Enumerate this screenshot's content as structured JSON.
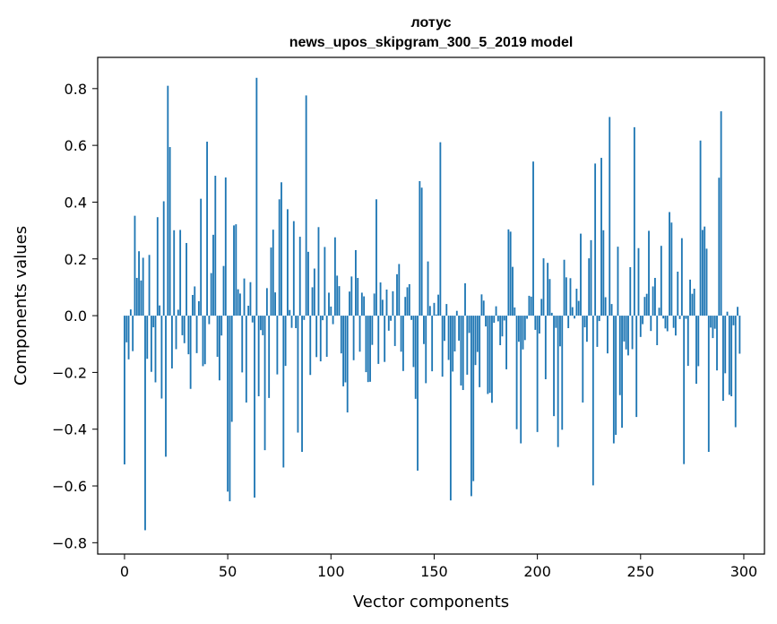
{
  "chart_data": {
    "type": "bar",
    "title": "лотус",
    "subtitle": "news_upos_skipgram_300_5_2019 model",
    "xlabel": "Vector components",
    "ylabel": "Components values",
    "xlim": [
      -13,
      310
    ],
    "ylim": [
      -0.84,
      0.91
    ],
    "xticks": [
      0,
      50,
      100,
      150,
      200,
      250,
      300
    ],
    "yticks": [
      -0.8,
      -0.6,
      -0.4,
      -0.2,
      0.0,
      0.2,
      0.4,
      0.6,
      0.8
    ],
    "ytick_labels": [
      "−0.8",
      "−0.6",
      "−0.4",
      "−0.2",
      "0.0",
      "0.2",
      "0.4",
      "0.6",
      "0.8"
    ],
    "grid": false,
    "bar_color": "#1f77b4",
    "values": [
      -0.524,
      -0.094,
      -0.154,
      0.022,
      -0.125,
      0.352,
      0.133,
      0.227,
      0.124,
      0.204,
      -0.756,
      -0.152,
      0.214,
      -0.198,
      -0.041,
      -0.235,
      0.347,
      0.036,
      -0.292,
      0.403,
      -0.497,
      0.81,
      0.594,
      -0.186,
      0.301,
      -0.118,
      0.021,
      0.302,
      -0.069,
      -0.097,
      0.256,
      -0.136,
      -0.258,
      0.073,
      0.103,
      -0.132,
      0.051,
      0.412,
      -0.178,
      -0.171,
      0.613,
      -0.03,
      0.15,
      0.285,
      0.493,
      -0.145,
      -0.228,
      -0.07,
      0.175,
      0.487,
      -0.62,
      -0.654,
      -0.374,
      0.318,
      0.322,
      0.093,
      0.078,
      -0.2,
      0.131,
      -0.306,
      0.035,
      0.118,
      -0.024,
      -0.641,
      0.838,
      -0.284,
      -0.051,
      -0.069,
      -0.474,
      0.097,
      -0.29,
      0.24,
      0.303,
      0.082,
      -0.207,
      0.41,
      0.47,
      -0.535,
      -0.177,
      0.375,
      0.02,
      -0.043,
      0.333,
      -0.044,
      -0.412,
      0.278,
      -0.48,
      -0.015,
      0.776,
      0.225,
      -0.209,
      0.1,
      0.166,
      -0.146,
      0.312,
      -0.161,
      -0.016,
      0.242,
      -0.145,
      0.081,
      0.032,
      -0.03,
      0.276,
      0.141,
      0.104,
      -0.133,
      -0.249,
      -0.235,
      -0.341,
      0.085,
      0.138,
      -0.157,
      0.231,
      0.133,
      -0.127,
      0.081,
      0.068,
      -0.199,
      -0.234,
      -0.233,
      -0.103,
      0.078,
      0.41,
      -0.17,
      0.117,
      0.056,
      -0.163,
      0.092,
      -0.053,
      -0.018,
      0.086,
      -0.107,
      0.146,
      0.182,
      -0.127,
      -0.195,
      0.066,
      0.1,
      0.111,
      -0.015,
      -0.181,
      -0.293,
      -0.546,
      0.474,
      0.451,
      -0.1,
      -0.238,
      0.191,
      0.034,
      -0.196,
      0.045,
      0.004,
      0.074,
      0.611,
      -0.215,
      -0.089,
      0.041,
      -0.156,
      -0.651,
      -0.197,
      -0.126,
      0.017,
      -0.088,
      -0.246,
      -0.262,
      0.114,
      -0.208,
      -0.061,
      -0.636,
      -0.583,
      -0.174,
      -0.128,
      -0.252,
      0.075,
      0.053,
      -0.038,
      -0.276,
      -0.272,
      -0.307,
      -0.025,
      0.033,
      -0.02,
      -0.104,
      -0.073,
      -0.017,
      -0.189,
      0.304,
      0.296,
      0.172,
      0.029,
      -0.4,
      -0.092,
      -0.45,
      -0.119,
      -0.086,
      -0.011,
      0.07,
      0.067,
      0.543,
      -0.05,
      -0.41,
      -0.063,
      0.059,
      0.202,
      -0.224,
      0.186,
      0.129,
      0.01,
      -0.354,
      -0.043,
      -0.463,
      -0.108,
      -0.402,
      0.197,
      0.135,
      -0.044,
      0.132,
      0.03,
      -0.01,
      0.095,
      0.052,
      0.289,
      -0.306,
      -0.041,
      -0.092,
      0.202,
      0.266,
      -0.598,
      0.536,
      -0.11,
      -0.019,
      0.556,
      0.301,
      0.065,
      -0.133,
      0.7,
      0.041,
      -0.45,
      -0.42,
      0.243,
      -0.28,
      -0.395,
      -0.091,
      -0.119,
      -0.14,
      0.171,
      -0.118,
      0.664,
      -0.357,
      0.238,
      -0.075,
      -0.03,
      0.066,
      0.077,
      0.299,
      -0.054,
      0.103,
      0.133,
      -0.104,
      0.028,
      0.246,
      -0.01,
      -0.045,
      -0.055,
      0.365,
      0.328,
      -0.043,
      -0.07,
      0.155,
      -0.012,
      0.273,
      -0.523,
      -0.011,
      -0.177,
      0.127,
      0.077,
      0.095,
      -0.24,
      -0.178,
      0.617,
      0.302,
      0.314,
      0.236,
      -0.48,
      -0.042,
      -0.079,
      -0.046,
      -0.193,
      0.486,
      0.72,
      -0.3,
      -0.203,
      0.014,
      -0.279,
      -0.284,
      -0.034,
      -0.393,
      0.031,
      -0.134
    ]
  }
}
